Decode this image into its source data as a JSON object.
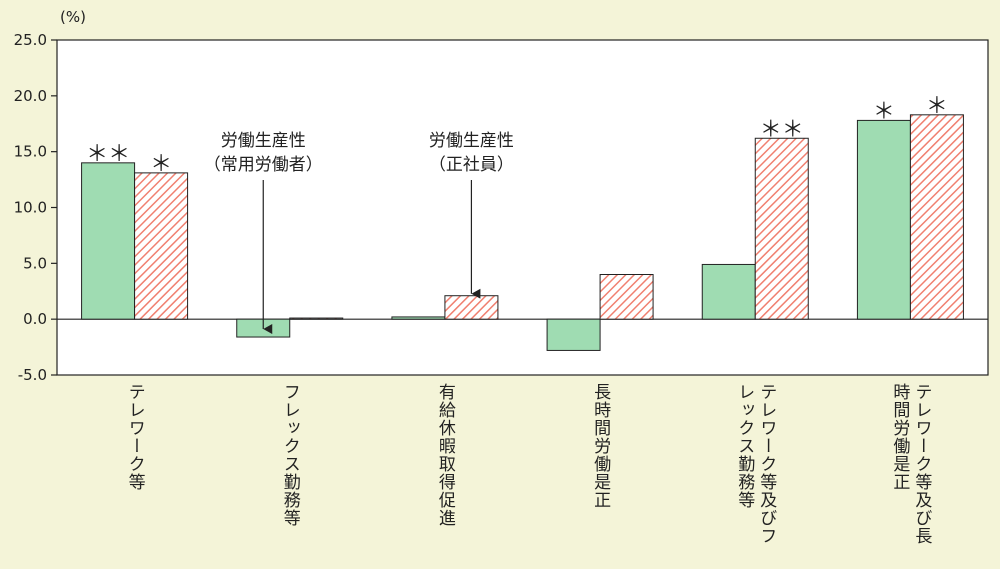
{
  "chart_data": {
    "type": "bar",
    "unit": "(%)",
    "ylim": [
      -5.0,
      25.0
    ],
    "yticks": [
      "25.0",
      "20.0",
      "15.0",
      "10.0",
      "5.0",
      "0.0",
      "-5.0"
    ],
    "ytick_values": [
      25,
      20,
      15,
      10,
      5,
      0,
      -5
    ],
    "categories": [
      [
        "テレワーク等"
      ],
      [
        "フレックス勤務等"
      ],
      [
        "有給休暇取得促進"
      ],
      [
        "長時間労働是正"
      ],
      [
        "テレワーク等及びフ",
        "レックス勤務等"
      ],
      [
        "テレワーク等及び長",
        "時間労働是正"
      ]
    ],
    "series": [
      {
        "values": [
          14.0,
          -1.6,
          0.2,
          -2.8,
          4.9,
          17.8
        ],
        "significance": [
          "＊＊",
          "",
          "",
          "",
          "",
          "＊"
        ]
      },
      {
        "values": [
          13.1,
          0.1,
          2.1,
          4.0,
          16.2,
          18.3
        ],
        "significance": [
          "＊",
          "",
          "",
          "",
          "＊＊",
          "＊"
        ]
      }
    ],
    "annotations": [
      {
        "lines": [
          "労働生産性",
          "（常用労働者）"
        ]
      },
      {
        "lines": [
          "労働生産性",
          "（正社員）"
        ]
      }
    ],
    "colors": {
      "series1_fill": "#9fdcb2",
      "series2_stripe": "#f08070",
      "axis": "#222222"
    }
  }
}
